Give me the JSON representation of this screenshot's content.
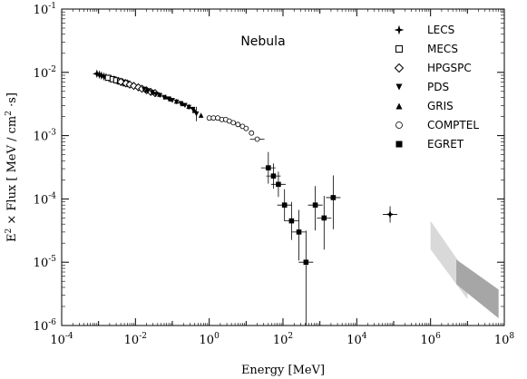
{
  "chart_data": {
    "type": "scatter",
    "title": "",
    "annotation": "Nebula",
    "xlabel": "Energy [MeV]",
    "ylabel_parts": {
      "pre": "E",
      "sup1": "2",
      "mid": " × Flux [ MeV / cm",
      "sup2": "2",
      "post": " ·s]"
    },
    "xscale": "log",
    "yscale": "log",
    "xlim": [
      0.0001,
      100000000
    ],
    "ylim": [
      1e-06,
      0.1
    ],
    "xticks": [
      {
        "base": "10",
        "exp": "-4"
      },
      {
        "base": "10",
        "exp": "-2"
      },
      {
        "base": "10",
        "exp": "0"
      },
      {
        "base": "10",
        "exp": "2"
      },
      {
        "base": "10",
        "exp": "4"
      },
      {
        "base": "10",
        "exp": "6"
      },
      {
        "base": "10",
        "exp": "8"
      }
    ],
    "yticks": [
      {
        "base": "10",
        "exp": "-6"
      },
      {
        "base": "10",
        "exp": "-5"
      },
      {
        "base": "10",
        "exp": "-4"
      },
      {
        "base": "10",
        "exp": "-3"
      },
      {
        "base": "10",
        "exp": "-2"
      },
      {
        "base": "10",
        "exp": "-1"
      }
    ],
    "legend_position": "top-right",
    "series": [
      {
        "name": "LECS",
        "marker": "star4",
        "points": [
          [
            0.0009,
            0.0095
          ],
          [
            0.00105,
            0.0092
          ],
          [
            0.0012,
            0.0089
          ],
          [
            0.0014,
            0.0086
          ],
          [
            0.0016,
            0.0084
          ],
          [
            0.0019,
            0.0081
          ],
          [
            0.0022,
            0.0079
          ],
          [
            0.0026,
            0.0077
          ],
          [
            0.003,
            0.0075
          ],
          [
            0.0035,
            0.0073
          ],
          [
            0.004,
            0.0071
          ],
          [
            0.0046,
            0.0069
          ],
          [
            0.0053,
            0.0068
          ],
          [
            0.006,
            0.0067
          ]
        ]
      },
      {
        "name": "MECS",
        "marker": "square-open",
        "points": [
          [
            0.0018,
            0.0082
          ],
          [
            0.0024,
            0.0078
          ],
          [
            0.003,
            0.0075
          ],
          [
            0.0038,
            0.0072
          ],
          [
            0.0046,
            0.0069
          ],
          [
            0.0056,
            0.0067
          ]
        ]
      },
      {
        "name": "HPGSPC",
        "marker": "diamond-open",
        "points": [
          [
            0.004,
            0.0071
          ],
          [
            0.0055,
            0.0067
          ],
          [
            0.007,
            0.0064
          ],
          [
            0.009,
            0.0061
          ],
          [
            0.012,
            0.0058
          ],
          [
            0.015,
            0.0055
          ],
          [
            0.02,
            0.0052
          ],
          [
            0.026,
            0.0049
          ],
          [
            0.034,
            0.0047
          ]
        ]
      },
      {
        "name": "PDS",
        "marker": "triangle-down",
        "points": [
          [
            0.017,
            0.0054
          ],
          [
            0.022,
            0.0051
          ],
          [
            0.028,
            0.0048
          ],
          [
            0.036,
            0.0045
          ],
          [
            0.046,
            0.0043
          ],
          [
            0.06,
            0.004
          ],
          [
            0.08,
            0.0038
          ],
          [
            0.1,
            0.0036
          ],
          [
            0.13,
            0.0034
          ],
          [
            0.17,
            0.0032
          ],
          [
            0.22,
            0.003
          ],
          [
            0.28,
            0.0028
          ],
          [
            0.36,
            0.0026
          ],
          [
            0.45,
            0.0022
          ]
        ]
      },
      {
        "name": "GRIS",
        "marker": "triangle-up",
        "points": [
          [
            0.02,
            0.0053
          ],
          [
            0.03,
            0.0049
          ],
          [
            0.045,
            0.0045
          ],
          [
            0.065,
            0.0041
          ],
          [
            0.09,
            0.0038
          ],
          [
            0.13,
            0.0035
          ],
          [
            0.19,
            0.0032
          ],
          [
            0.28,
            0.0029
          ],
          [
            0.4,
            0.0025
          ],
          [
            0.6,
            0.0021
          ]
        ]
      },
      {
        "name": "COMPTEL",
        "marker": "circle-open",
        "points": [
          [
            1.0,
            0.0019
          ],
          [
            1.3,
            0.0019
          ],
          [
            1.7,
            0.0019
          ],
          [
            2.2,
            0.0018
          ],
          [
            2.8,
            0.0018
          ],
          [
            3.5,
            0.0017
          ],
          [
            4.5,
            0.0016
          ],
          [
            6.0,
            0.0015
          ],
          [
            8.0,
            0.0014
          ],
          [
            10.0,
            0.0013
          ],
          [
            14.0,
            0.0011
          ],
          [
            20.0,
            0.00088
          ]
        ]
      },
      {
        "name": "EGRET",
        "marker": "square-filled",
        "points": [
          [
            40,
            0.00031
          ],
          [
            55,
            0.00023
          ],
          [
            75,
            0.00017
          ],
          [
            110,
            8e-05
          ],
          [
            170,
            4.5e-05
          ],
          [
            270,
            3e-05
          ],
          [
            420,
            1e-05
          ],
          [
            750,
            8e-05
          ],
          [
            1300,
            5e-05
          ],
          [
            2300,
            0.000105
          ]
        ]
      },
      {
        "name": "",
        "marker": "star4",
        "points": [
          [
            80000,
            5.7e-05
          ]
        ]
      }
    ],
    "bands": [
      {
        "name": "",
        "color": "#d9d9d9",
        "x": [
          1000000,
          10000000
        ],
        "y_low": [
          1.6e-05,
          2.6e-06
        ],
        "y_high": [
          4.5e-05,
          6.5e-06
        ]
      },
      {
        "name": "",
        "color": "#a6a6a6",
        "x": [
          5000000,
          70000000
        ],
        "y_low": [
          4.5e-06,
          1.3e-06
        ],
        "y_high": [
          1.1e-05,
          3.7e-06
        ]
      }
    ]
  }
}
